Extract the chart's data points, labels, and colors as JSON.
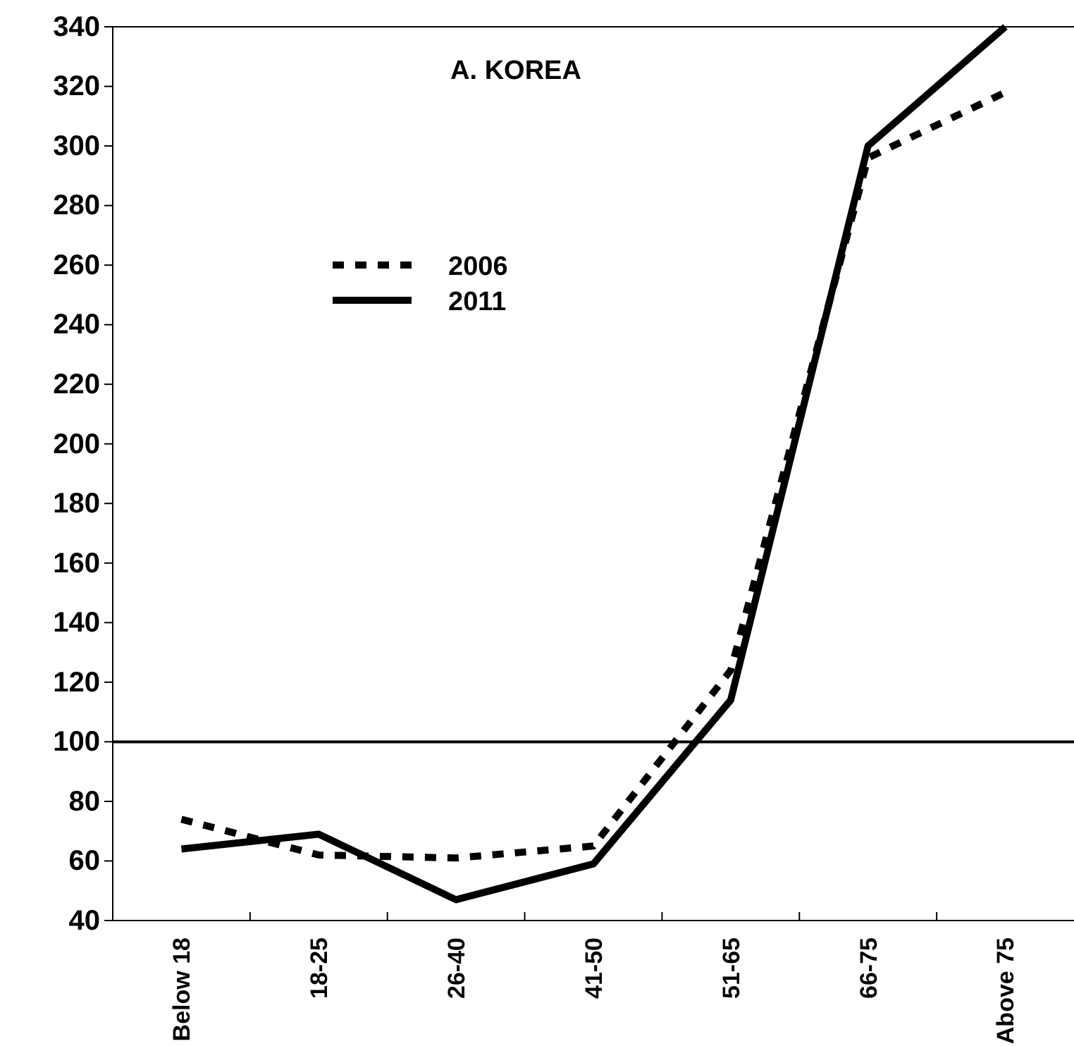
{
  "chart_data": {
    "type": "line",
    "title": "A. KOREA",
    "categories": [
      "Below 18",
      "18-25",
      "26-40",
      "41-50",
      "51-65",
      "66-75",
      "Above 75"
    ],
    "series": [
      {
        "name": "2006",
        "color": "#000000",
        "line_style": "dotted",
        "values": [
          74,
          62,
          61,
          65,
          124,
          296,
          318
        ]
      },
      {
        "name": "2011",
        "color": "#000000",
        "line_style": "solid",
        "values": [
          64,
          69,
          47,
          59,
          114,
          300,
          340
        ]
      }
    ],
    "ylim": [
      40,
      340
    ],
    "yticks": [
      40,
      60,
      80,
      100,
      120,
      140,
      160,
      180,
      200,
      220,
      240,
      260,
      280,
      300,
      320,
      340
    ],
    "ref_lines": [
      {
        "axis": "y",
        "value": 100,
        "color": "#000000"
      }
    ],
    "grid": false,
    "legend": "top left",
    "marker": "none"
  }
}
